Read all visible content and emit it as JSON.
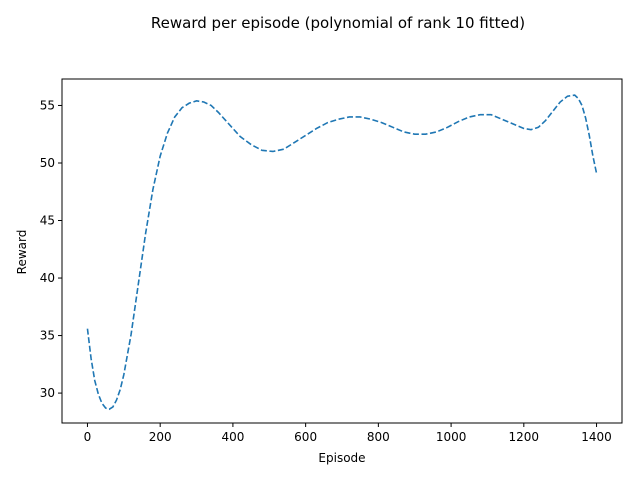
{
  "chart_data": {
    "type": "line",
    "title": "Reward per episode (polynomial of rank 10 fitted)",
    "xlabel": "Episode",
    "ylabel": "Reward",
    "xlim": [
      -70,
      1470
    ],
    "ylim": [
      27.4,
      57.3
    ],
    "xticks": [
      0,
      200,
      400,
      600,
      800,
      1000,
      1200,
      1400
    ],
    "yticks": [
      30,
      35,
      40,
      45,
      50,
      55
    ],
    "grid": false,
    "line_style": "dashed",
    "series": [
      {
        "color": "#1f77b4",
        "x": [
          0,
          10,
          20,
          30,
          40,
          50,
          60,
          70,
          80,
          90,
          100,
          120,
          140,
          160,
          180,
          200,
          220,
          240,
          260,
          280,
          300,
          320,
          340,
          360,
          380,
          400,
          420,
          450,
          480,
          510,
          540,
          570,
          600,
          630,
          660,
          690,
          720,
          750,
          780,
          810,
          840,
          870,
          900,
          930,
          960,
          990,
          1020,
          1050,
          1080,
          1110,
          1140,
          1170,
          1200,
          1220,
          1240,
          1260,
          1280,
          1300,
          1320,
          1340,
          1350,
          1360,
          1370,
          1380,
          1390,
          1400
        ],
        "y": [
          35.6,
          33.0,
          31.1,
          29.9,
          29.1,
          28.7,
          28.6,
          28.8,
          29.4,
          30.3,
          31.6,
          35.1,
          39.5,
          43.9,
          47.7,
          50.6,
          52.6,
          54.0,
          54.8,
          55.2,
          55.4,
          55.3,
          55.0,
          54.4,
          53.7,
          53.0,
          52.3,
          51.6,
          51.1,
          51.0,
          51.2,
          51.8,
          52.4,
          53.0,
          53.5,
          53.8,
          54.0,
          54.0,
          53.8,
          53.5,
          53.1,
          52.7,
          52.5,
          52.5,
          52.7,
          53.1,
          53.6,
          54.0,
          54.2,
          54.2,
          53.8,
          53.4,
          53.0,
          52.9,
          53.1,
          53.7,
          54.5,
          55.3,
          55.8,
          55.9,
          55.6,
          55.0,
          53.9,
          52.4,
          50.6,
          49.1
        ]
      }
    ]
  }
}
